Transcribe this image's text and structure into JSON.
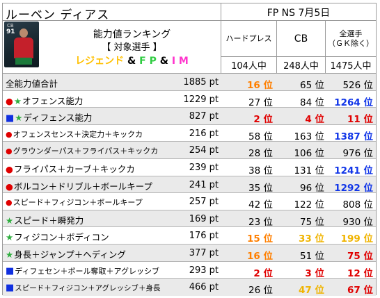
{
  "header": {
    "player_name": "ルーベン ディアス",
    "mode_date": "FP NS 7月5日"
  },
  "card": {
    "position": "CB",
    "rating": "91"
  },
  "title": {
    "line1": "能力値ランキング",
    "line2": "【 対象選手 】",
    "line3": {
      "legend": "レジェンド",
      "amp": "&",
      "fp": "F P",
      "im": "I M"
    }
  },
  "columns": [
    {
      "label": "ハードプレス",
      "count": "104人中"
    },
    {
      "label": "CB",
      "count": "248人中"
    },
    {
      "label": "全選手\n（ＧＫ除く）",
      "count": "1475人中"
    }
  ],
  "rows": [
    {
      "mark": "",
      "label": "全能力値合計",
      "points": "1885 pt",
      "ranks": [
        {
          "v": "16 位",
          "c": "orange"
        },
        {
          "v": "65 位",
          "c": "black"
        },
        {
          "v": "526 位",
          "c": "black"
        }
      ]
    },
    {
      "mark": "●★",
      "label": "オフェンス能力",
      "points": "1229 pt",
      "ranks": [
        {
          "v": "27 位",
          "c": "black"
        },
        {
          "v": "84 位",
          "c": "black"
        },
        {
          "v": "1264 位",
          "c": "blue"
        }
      ]
    },
    {
      "mark": "■★",
      "label": "ディフェンス能力",
      "points": "827 pt",
      "ranks": [
        {
          "v": "2 位",
          "c": "red"
        },
        {
          "v": "4 位",
          "c": "red"
        },
        {
          "v": "11 位",
          "c": "red"
        }
      ]
    },
    {
      "mark": "●",
      "label": "オフェンスセンス＋決定力＋キックカ",
      "points": "216 pt",
      "ranks": [
        {
          "v": "58 位",
          "c": "black"
        },
        {
          "v": "163 位",
          "c": "black"
        },
        {
          "v": "1387 位",
          "c": "blue"
        }
      ]
    },
    {
      "mark": "●",
      "label": "グラウンダーパス＋フライパス＋キックカ",
      "points": "254 pt",
      "ranks": [
        {
          "v": "28 位",
          "c": "black"
        },
        {
          "v": "106 位",
          "c": "black"
        },
        {
          "v": "976 位",
          "c": "black"
        }
      ]
    },
    {
      "mark": "●",
      "label": "フライパス＋カーブ＋キックカ",
      "points": "239 pt",
      "ranks": [
        {
          "v": "38 位",
          "c": "black"
        },
        {
          "v": "131 位",
          "c": "black"
        },
        {
          "v": "1241 位",
          "c": "blue"
        }
      ]
    },
    {
      "mark": "●",
      "label": "ボルコン＋ドリブル＋ボールキープ",
      "points": "241 pt",
      "ranks": [
        {
          "v": "35 位",
          "c": "black"
        },
        {
          "v": "96 位",
          "c": "black"
        },
        {
          "v": "1292 位",
          "c": "blue"
        }
      ]
    },
    {
      "mark": "●",
      "label": "スピード＋フィジコン＋ボールキープ",
      "points": "257 pt",
      "ranks": [
        {
          "v": "42 位",
          "c": "black"
        },
        {
          "v": "122 位",
          "c": "black"
        },
        {
          "v": "808 位",
          "c": "black"
        }
      ]
    },
    {
      "mark": "★",
      "label": "スピード＋瞬発力",
      "points": "169 pt",
      "ranks": [
        {
          "v": "23 位",
          "c": "black"
        },
        {
          "v": "75 位",
          "c": "black"
        },
        {
          "v": "930 位",
          "c": "black"
        }
      ]
    },
    {
      "mark": "★",
      "label": "フィジコン＋ボディコン",
      "points": "176 pt",
      "ranks": [
        {
          "v": "15 位",
          "c": "orange"
        },
        {
          "v": "33 位",
          "c": "gold"
        },
        {
          "v": "199 位",
          "c": "gold"
        }
      ]
    },
    {
      "mark": "★",
      "label": "身長＋ジャンプ＋ヘディング",
      "points": "377 pt",
      "ranks": [
        {
          "v": "16 位",
          "c": "orange"
        },
        {
          "v": "51 位",
          "c": "black"
        },
        {
          "v": "75 位",
          "c": "red"
        }
      ]
    },
    {
      "mark": "■",
      "label": "ディフェセン＋ボール奪取＋アグレッシブ",
      "points": "293 pt",
      "ranks": [
        {
          "v": "2 位",
          "c": "red"
        },
        {
          "v": "3 位",
          "c": "red"
        },
        {
          "v": "12 位",
          "c": "red"
        }
      ]
    },
    {
      "mark": "■",
      "label": "スピード＋フィジコン＋アグレッシブ＋身長",
      "points": "466 pt",
      "ranks": [
        {
          "v": "26 位",
          "c": "black"
        },
        {
          "v": "47 位",
          "c": "gold"
        },
        {
          "v": "67 位",
          "c": "red"
        }
      ]
    }
  ],
  "colors": {
    "orange": "#ff7f00",
    "red": "#e00000",
    "blue": "#1035e8",
    "gold": "#f0b400",
    "legend": "#ffc000",
    "fp": "#2ecc40",
    "im": "#ff33cc"
  }
}
